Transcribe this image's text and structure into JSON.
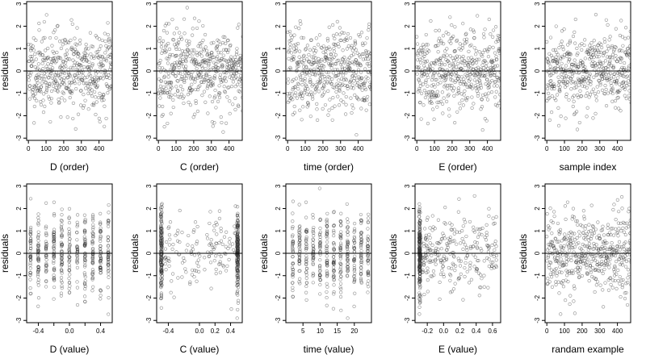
{
  "chart_data": [
    {
      "type": "scatter",
      "xlabel": "D (order)",
      "ylabel": "residuals",
      "xlim": [
        -10,
        475
      ],
      "ylim": [
        -3.1,
        3.1
      ],
      "xticks": [
        0,
        100,
        200,
        300,
        400
      ],
      "yticks": [
        -3,
        -2,
        -1,
        0,
        1,
        2,
        3
      ],
      "x_mode": "index",
      "seed": 11,
      "n": 480,
      "ref_line": 0
    },
    {
      "type": "scatter",
      "xlabel": "C (order)",
      "ylabel": "residuals",
      "xlim": [
        -10,
        475
      ],
      "ylim": [
        -3.1,
        3.1
      ],
      "xticks": [
        0,
        100,
        200,
        300,
        400
      ],
      "yticks": [
        -3,
        -2,
        -1,
        0,
        1,
        2,
        3
      ],
      "x_mode": "index",
      "seed": 23,
      "n": 480,
      "ref_line": 0
    },
    {
      "type": "scatter",
      "xlabel": "time (order)",
      "ylabel": "residuals",
      "xlim": [
        -10,
        475
      ],
      "ylim": [
        -3.1,
        3.1
      ],
      "xticks": [
        0,
        100,
        200,
        300,
        400
      ],
      "yticks": [
        -3,
        -2,
        -1,
        0,
        1,
        2,
        3
      ],
      "x_mode": "index",
      "seed": 37,
      "n": 480,
      "ref_line": 0
    },
    {
      "type": "scatter",
      "xlabel": "E (order)",
      "ylabel": "residuals",
      "xlim": [
        -10,
        475
      ],
      "ylim": [
        -3.1,
        3.1
      ],
      "xticks": [
        0,
        100,
        200,
        300,
        400
      ],
      "yticks": [
        -3,
        -2,
        -1,
        0,
        1,
        2,
        3
      ],
      "x_mode": "index",
      "seed": 41,
      "n": 480,
      "ref_line": 0
    },
    {
      "type": "scatter",
      "xlabel": "sample index",
      "ylabel": "residuals",
      "xlim": [
        -10,
        475
      ],
      "ylim": [
        -3.1,
        3.1
      ],
      "xticks": [
        0,
        100,
        200,
        300,
        400
      ],
      "yticks": [
        -3,
        -2,
        -1,
        0,
        1,
        2,
        3
      ],
      "x_mode": "index",
      "seed": 53,
      "n": 480,
      "ref_line": 0
    },
    {
      "type": "scatter",
      "xlabel": "D (value)",
      "ylabel": "residuals",
      "xlim": [
        -0.55,
        0.55
      ],
      "ylim": [
        -3.1,
        3.1
      ],
      "xticks": [
        -0.4,
        -0.2,
        0.0,
        0.2,
        0.4
      ],
      "xtick_labels": [
        "-0.4",
        "",
        "0.0",
        "",
        "0.4"
      ],
      "yticks": [
        -3,
        -2,
        -1,
        0,
        1,
        2,
        3
      ],
      "x_mode": "discrete",
      "x_levels": [
        -0.5,
        -0.4,
        -0.3,
        -0.2,
        -0.1,
        0.0,
        0.1,
        0.2,
        0.3,
        0.4,
        0.5
      ],
      "seed": 61,
      "n": 480,
      "ref_line": 0
    },
    {
      "type": "scatter",
      "xlabel": "C (value)",
      "ylabel": "residuals",
      "xlim": [
        -0.55,
        0.55
      ],
      "ylim": [
        -3.1,
        3.1
      ],
      "xticks": [
        -0.4,
        0.0,
        0.2,
        0.4
      ],
      "xtick_labels": [
        "-0.4",
        "0.0",
        "0.2",
        "0.4"
      ],
      "yticks": [
        -3,
        -2,
        -1,
        0,
        1,
        2,
        3
      ],
      "x_mode": "edges",
      "x_edges": [
        -0.5,
        0.5
      ],
      "seed": 71,
      "n": 480,
      "ref_line": 0
    },
    {
      "type": "scatter",
      "xlabel": "time (value)",
      "ylabel": "residuals",
      "xlim": [
        0,
        25
      ],
      "ylim": [
        -3.1,
        3.1
      ],
      "xticks": [
        5,
        10,
        15,
        20
      ],
      "yticks": [
        -3,
        -2,
        -1,
        0,
        1,
        2,
        3
      ],
      "x_mode": "discrete",
      "x_levels": [
        2,
        4,
        6,
        8,
        10,
        12,
        14,
        16,
        18,
        20,
        22,
        24
      ],
      "seed": 83,
      "n": 480,
      "ref_line": 0
    },
    {
      "type": "scatter",
      "xlabel": "E (value)",
      "ylabel": "residuals",
      "xlim": [
        -0.35,
        0.7
      ],
      "ylim": [
        -3.1,
        3.1
      ],
      "xticks": [
        -0.2,
        0.0,
        0.2,
        0.4,
        0.6
      ],
      "xtick_labels": [
        "-0.2",
        "0.0",
        "0.2",
        "0.4",
        "0.6"
      ],
      "yticks": [
        -3,
        -2,
        -1,
        0,
        1,
        2,
        3
      ],
      "x_mode": "skewed",
      "x_min": -0.3,
      "x_max": 0.65,
      "seed": 97,
      "n": 480,
      "ref_line": 0
    },
    {
      "type": "scatter",
      "xlabel": "randam example",
      "ylabel": "residuals",
      "xlim": [
        -10,
        475
      ],
      "ylim": [
        -3.1,
        3.1
      ],
      "xticks": [
        0,
        100,
        200,
        300,
        400
      ],
      "yticks": [
        -3,
        -2,
        -1,
        0,
        1,
        2,
        3
      ],
      "x_mode": "index",
      "seed": 109,
      "n": 480,
      "ref_line": 0
    }
  ]
}
